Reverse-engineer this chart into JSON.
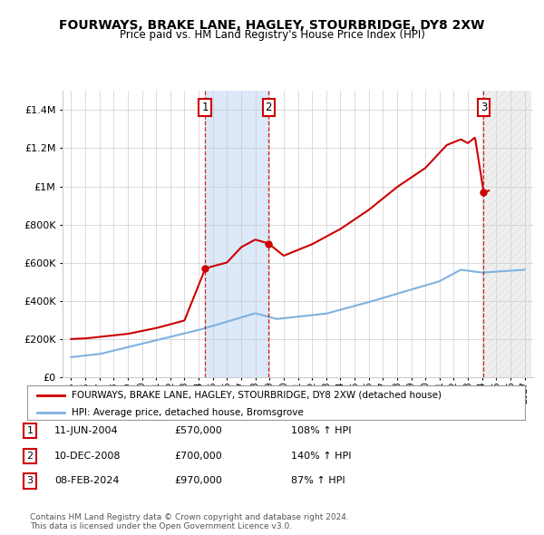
{
  "title": "FOURWAYS, BRAKE LANE, HAGLEY, STOURBRIDGE, DY8 2XW",
  "subtitle": "Price paid vs. HM Land Registry's House Price Index (HPI)",
  "legend_line1": "FOURWAYS, BRAKE LANE, HAGLEY, STOURBRIDGE, DY8 2XW (detached house)",
  "legend_line2": "HPI: Average price, detached house, Bromsgrove",
  "transactions": [
    {
      "num": 1,
      "date": "11-JUN-2004",
      "price": 570000,
      "pct": "108%",
      "dir": "↑",
      "label": "HPI"
    },
    {
      "num": 2,
      "date": "10-DEC-2008",
      "price": 700000,
      "pct": "140%",
      "dir": "↑",
      "label": "HPI"
    },
    {
      "num": 3,
      "date": "08-FEB-2024",
      "price": 970000,
      "pct": "87%",
      "dir": "↑",
      "label": "HPI"
    }
  ],
  "sale_years": [
    2004.45,
    2008.94,
    2024.11
  ],
  "sale_prices": [
    570000,
    700000,
    970000
  ],
  "hpi_color": "#7fb2e0",
  "price_color": "#cc0000",
  "shade_color": "#dce9f8",
  "background_color": "#ffffff",
  "grid_color": "#cccccc",
  "footer": "Contains HM Land Registry data © Crown copyright and database right 2024.\nThis data is licensed under the Open Government Licence v3.0.",
  "yticks": [
    0,
    200000,
    400000,
    600000,
    800000,
    1000000,
    1200000,
    1400000
  ],
  "xstart": 1995,
  "xend": 2027
}
